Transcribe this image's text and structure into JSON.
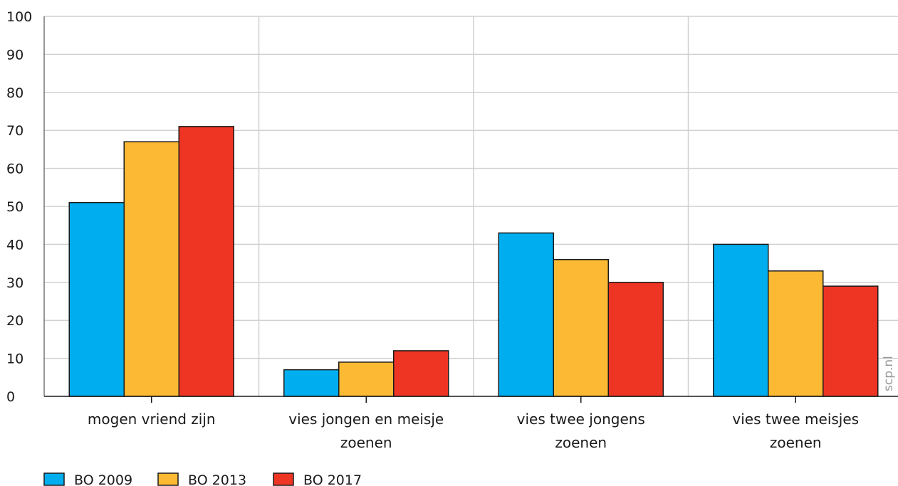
{
  "chart_data": {
    "type": "bar",
    "categories": [
      [
        "mogen vriend zijn"
      ],
      [
        "vies jongen en meisje",
        "zoenen"
      ],
      [
        "vies twee jongens",
        "zoenen"
      ],
      [
        "vies twee meisjes",
        "zoenen"
      ]
    ],
    "series": [
      {
        "name": "BO 2009",
        "color": "#00aeef",
        "values": [
          51,
          7,
          43,
          40
        ]
      },
      {
        "name": "BO 2013",
        "color": "#fbb934",
        "values": [
          67,
          9,
          36,
          33
        ]
      },
      {
        "name": "BO 2017",
        "color": "#ee3524",
        "values": [
          71,
          12,
          30,
          29
        ]
      }
    ],
    "ylim": [
      0,
      100
    ],
    "yticks": [
      0,
      10,
      20,
      30,
      40,
      50,
      60,
      70,
      80,
      90,
      100
    ],
    "grid": true,
    "legend_position": "bottom-left",
    "watermark": "scp.nl",
    "title": "",
    "xlabel": "",
    "ylabel": ""
  }
}
